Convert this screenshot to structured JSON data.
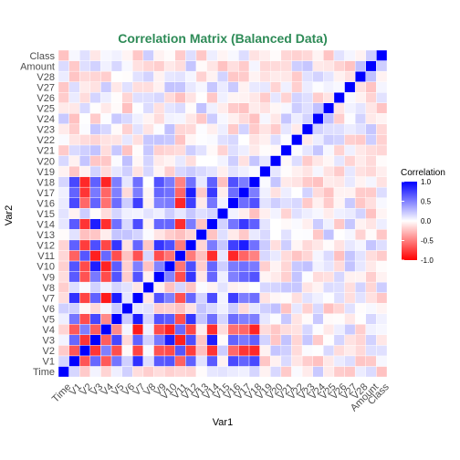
{
  "chart_data": {
    "type": "heatmap",
    "title": "Correlation Matrix (Balanced Data)",
    "title_color": "#2e8b57",
    "xlabel": "Var1",
    "ylabel": "Var2",
    "variables": [
      "Time",
      "V1",
      "V2",
      "V3",
      "V4",
      "V5",
      "V6",
      "V7",
      "V8",
      "V9",
      "V10",
      "V11",
      "V12",
      "V13",
      "V14",
      "V15",
      "V16",
      "V17",
      "V18",
      "V19",
      "V20",
      "V21",
      "V22",
      "V23",
      "V24",
      "V25",
      "V26",
      "V27",
      "V28",
      "Amount",
      "Class"
    ],
    "legend": {
      "title": "Correlation",
      "ticks": [
        "1.0",
        "0.5",
        "0.0",
        "-0.5",
        "-1.0"
      ],
      "tick_values": [
        1.0,
        0.5,
        0.0,
        -0.5,
        -1.0
      ],
      "position": "right"
    },
    "color_scale": {
      "low": "#ff0000",
      "mid": "#ffffff",
      "high": "#0000ff",
      "limits": [
        -1,
        1
      ]
    },
    "strong_group": [
      "V1",
      "V2",
      "V3",
      "V4",
      "V5",
      "V7",
      "V9",
      "V10",
      "V11",
      "V12",
      "V14",
      "V16",
      "V17",
      "V18"
    ],
    "negative_in_group": [
      "V2",
      "V4",
      "V11"
    ],
    "grid": false
  }
}
